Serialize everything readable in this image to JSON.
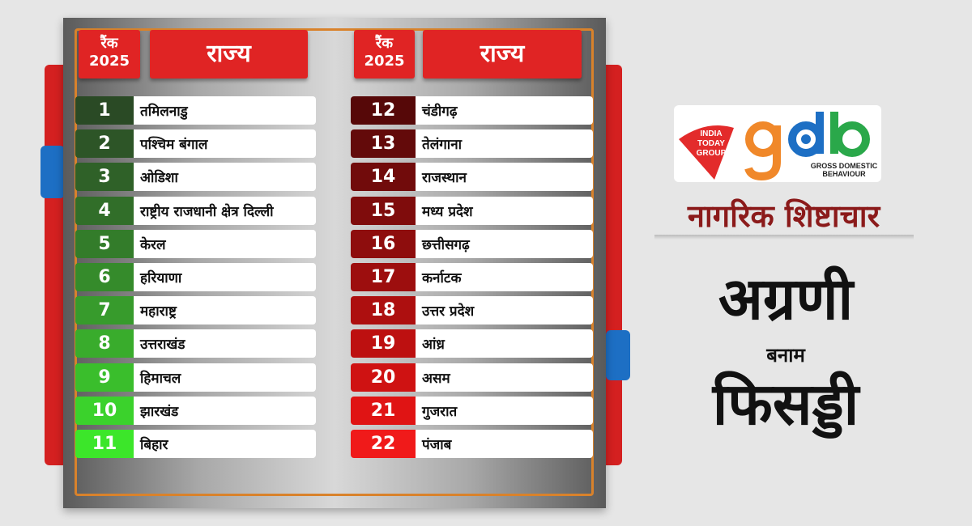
{
  "header": {
    "rank_label": "रैंक",
    "year": "2025",
    "state_label": "राज्य"
  },
  "left_rows": [
    {
      "rank": "1",
      "state": "तमिलनाडु",
      "color": "#2a4a25"
    },
    {
      "rank": "2",
      "state": "पश्चिम बंगाल",
      "color": "#2d5527"
    },
    {
      "rank": "3",
      "state": "ओडिशा",
      "color": "#2f6128"
    },
    {
      "rank": "4",
      "state": "राष्ट्रीय राजधानी क्षेत्र दिल्ली",
      "color": "#316e29"
    },
    {
      "rank": "5",
      "state": "केरल",
      "color": "#337c2a"
    },
    {
      "rank": "6",
      "state": "हरियाणा",
      "color": "#358b2b"
    },
    {
      "rank": "7",
      "state": "महाराष्ट्र",
      "color": "#379b2c"
    },
    {
      "rank": "8",
      "state": "उत्तराखंड",
      "color": "#39ac2c"
    },
    {
      "rank": "9",
      "state": "हिमाचल",
      "color": "#3abe2c"
    },
    {
      "rank": "10",
      "state": "झारखंड",
      "color": "#3bd22c"
    },
    {
      "rank": "11",
      "state": "बिहार",
      "color": "#3ce62a"
    }
  ],
  "right_rows": [
    {
      "rank": "12",
      "state": "चंडीगढ़",
      "color": "#560808"
    },
    {
      "rank": "13",
      "state": "तेलंगाना",
      "color": "#630a0a"
    },
    {
      "rank": "14",
      "state": "राजस्थान",
      "color": "#710b0b"
    },
    {
      "rank": "15",
      "state": "मध्य प्रदेश",
      "color": "#7f0c0c"
    },
    {
      "rank": "16",
      "state": "छत्तीसगढ़",
      "color": "#8e0d0d"
    },
    {
      "rank": "17",
      "state": "कर्नाटक",
      "color": "#9d0e0e"
    },
    {
      "rank": "18",
      "state": "उत्तर प्रदेश",
      "color": "#ad0f0f"
    },
    {
      "rank": "19",
      "state": "आंध्र",
      "color": "#bd1010"
    },
    {
      "rank": "20",
      "state": "असम",
      "color": "#cf1212"
    },
    {
      "rank": "21",
      "state": "गुजरात",
      "color": "#e01414"
    },
    {
      "rank": "22",
      "state": "पंजाब",
      "color": "#f01a1a"
    }
  ],
  "logo": {
    "itg": [
      "INDIA",
      "TODAY",
      "GROUP"
    ],
    "gdb": "gdb",
    "gdb_sub1": "GROSS DOMESTIC",
    "gdb_sub2": "BEHAVIOUR"
  },
  "title": "नागरिक शिष्टाचार",
  "top_word": "अग्रणी",
  "versus": "बनाम",
  "bottom_word": "फिसड्डी"
}
